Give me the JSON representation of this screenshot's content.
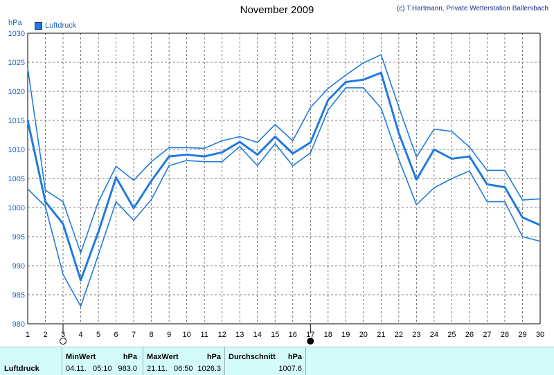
{
  "header": {
    "title": "November 2009",
    "credit": "(c) T.Hartmann, Private Wetterstation Ballersbach",
    "unit_label": "hPa",
    "legend_label": "Luftdruck"
  },
  "chart_data": {
    "type": "line",
    "title": "November 2009",
    "ylabel": "hPa",
    "xlabel": "",
    "x": [
      1,
      2,
      3,
      4,
      5,
      6,
      7,
      8,
      9,
      10,
      11,
      12,
      13,
      14,
      15,
      16,
      17,
      18,
      19,
      20,
      21,
      22,
      23,
      24,
      25,
      26,
      27,
      28,
      29,
      30
    ],
    "ylim": [
      980,
      1030
    ],
    "yticks": [
      980,
      985,
      990,
      995,
      1000,
      1005,
      1010,
      1015,
      1020,
      1025,
      1030
    ],
    "xlim": [
      1,
      30
    ],
    "grid": true,
    "legend_position": "top-left",
    "series": [
      {
        "name": "Luftdruck",
        "role": "avg",
        "values": [
          1015.0,
          1001.0,
          997.2,
          987.5,
          995.8,
          1005.2,
          999.9,
          1004.6,
          1008.8,
          1009.1,
          1008.8,
          1009.5,
          1011.3,
          1009.1,
          1012.2,
          1009.3,
          1011.2,
          1018.5,
          1021.6,
          1022.0,
          1023.2,
          1012.8,
          1004.8,
          1010.0,
          1008.4,
          1008.8,
          1004.0,
          1003.5,
          998.3,
          997.0
        ]
      },
      {
        "series_role": "max",
        "values": [
          1024.0,
          1003.0,
          1001.0,
          992.2,
          1001.0,
          1007.1,
          1004.7,
          1007.9,
          1010.3,
          1010.3,
          1010.2,
          1011.5,
          1012.2,
          1011.2,
          1014.3,
          1011.5,
          1017.2,
          1020.5,
          1022.8,
          1024.9,
          1026.3,
          1017.3,
          1008.7,
          1013.5,
          1013.1,
          1010.4,
          1006.4,
          1006.4,
          1001.3,
          1001.5
        ]
      },
      {
        "series_role": "min",
        "values": [
          1003.2,
          1000.2,
          988.5,
          983.0,
          991.9,
          1001.0,
          997.8,
          1001.4,
          1007.2,
          1008.1,
          1007.9,
          1007.9,
          1010.5,
          1007.2,
          1011.0,
          1007.2,
          1009.4,
          1016.8,
          1020.6,
          1020.6,
          1017.1,
          1008.3,
          1000.5,
          1003.4,
          1005.0,
          1006.3,
          1001.0,
          1001.0,
          995.0,
          994.2
        ]
      }
    ],
    "markers": [
      {
        "day": 3,
        "symbol": "open-circle",
        "meaning": "new moon"
      },
      {
        "day": 17,
        "symbol": "filled-circle",
        "meaning": "full moon"
      }
    ]
  },
  "stats": {
    "row_label": "Luftdruck",
    "min": {
      "header": "MinWert",
      "unit": "hPa",
      "date": "04.11.",
      "time": "05:10",
      "value": "983.0"
    },
    "max": {
      "header": "MaxWert",
      "unit": "hPa",
      "date": "21.11.",
      "time": "06:50",
      "value": "1026.3"
    },
    "avg": {
      "header": "Durchschnitt",
      "unit": "hPa",
      "value": "1007.6"
    }
  },
  "colors": {
    "line": "#1f7ae0",
    "grid": "#555555",
    "axis_text": "#1f5fbf",
    "stats_bg": "#d3fbfa"
  }
}
